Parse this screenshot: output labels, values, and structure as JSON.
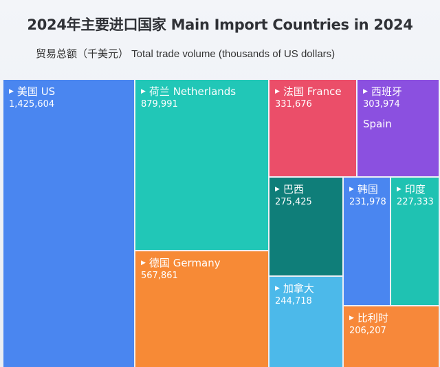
{
  "chart_data": {
    "type": "treemap",
    "title": "2024年主要进口国家 Main Import Countries in 2024",
    "subtitle": "贸易总额（千美元） Total trade volume (thousands of US dollars)",
    "items": [
      {
        "label": "美国  US",
        "value": 1425604,
        "value_text": "1,425,604",
        "color": "#4a86f0"
      },
      {
        "label": "荷兰 Netherlands",
        "value": 879991,
        "value_text": "879,991",
        "color": "#21c7b7"
      },
      {
        "label": "德国 Germany",
        "value": 567861,
        "value_text": "567,861",
        "color": "#f78a36"
      },
      {
        "label": "法国 France",
        "value": 331676,
        "value_text": "331,676",
        "color": "#eb4e69"
      },
      {
        "label": "西班牙",
        "value": 303974,
        "value_text": "303,974",
        "extra": "Spain",
        "color": "#8b50e0"
      },
      {
        "label": "巴西",
        "value": 275425,
        "value_text": "275,425",
        "color": "#0f7e79"
      },
      {
        "label": "韩国",
        "value": 231978,
        "value_text": "231,978",
        "color": "#4a86f0"
      },
      {
        "label": "印度",
        "value": 227333,
        "value_text": "227,333",
        "color": "#1fc2b2"
      },
      {
        "label": "加拿大",
        "value": 244718,
        "value_text": "244,718",
        "color": "#4cb9ea"
      },
      {
        "label": "比利时",
        "value": 206207,
        "value_text": "206,207",
        "color": "#f7883a"
      }
    ]
  }
}
